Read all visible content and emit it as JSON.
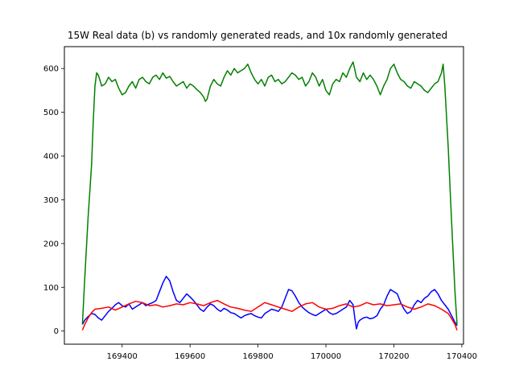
{
  "chart_data": {
    "type": "line",
    "title": "15W Real data (b) vs randomly generated reads, and 10x randomly generated",
    "xlabel": "",
    "ylabel": "",
    "xlim": [
      169230,
      170405
    ],
    "ylim": [
      -30,
      650
    ],
    "xticks": [
      169400,
      169600,
      169800,
      170000,
      170200,
      170400
    ],
    "xtick_labels": [
      "169400",
      "169600",
      "169800",
      "170000",
      "170200",
      "170400"
    ],
    "yticks": [
      0,
      100,
      200,
      300,
      400,
      500,
      600
    ],
    "ytick_labels": [
      "0",
      "100",
      "200",
      "300",
      "400",
      "500",
      "600"
    ],
    "grid": false,
    "series": [
      {
        "color": "#0000ff",
        "x": [
          169283,
          169290,
          169300,
          169310,
          169320,
          169330,
          169340,
          169350,
          169360,
          169370,
          169380,
          169390,
          169400,
          169410,
          169420,
          169430,
          169440,
          169450,
          169460,
          169470,
          169480,
          169490,
          169500,
          169510,
          169520,
          169530,
          169540,
          169550,
          169560,
          169570,
          169580,
          169590,
          169600,
          169610,
          169620,
          169630,
          169640,
          169650,
          169660,
          169670,
          169680,
          169690,
          169700,
          169710,
          169720,
          169730,
          169740,
          169750,
          169760,
          169770,
          169780,
          169790,
          169800,
          169810,
          169820,
          169830,
          169840,
          169850,
          169860,
          169870,
          169880,
          169890,
          169900,
          169910,
          169920,
          169930,
          169940,
          169950,
          169960,
          169970,
          169980,
          169990,
          170000,
          170010,
          170020,
          170030,
          170040,
          170050,
          170060,
          170070,
          170080,
          170085,
          170090,
          170095,
          170100,
          170110,
          170120,
          170130,
          170140,
          170150,
          170160,
          170170,
          170180,
          170190,
          170200,
          170210,
          170220,
          170230,
          170240,
          170250,
          170260,
          170270,
          170280,
          170290,
          170300,
          170310,
          170320,
          170330,
          170340,
          170350,
          170360,
          170370,
          170380,
          170386
        ],
        "y": [
          15,
          25,
          33,
          40,
          38,
          30,
          25,
          35,
          45,
          52,
          60,
          65,
          58,
          55,
          62,
          50,
          55,
          60,
          65,
          58,
          62,
          65,
          70,
          90,
          110,
          125,
          115,
          90,
          70,
          65,
          75,
          85,
          78,
          70,
          60,
          50,
          45,
          55,
          62,
          58,
          50,
          45,
          52,
          48,
          42,
          40,
          35,
          30,
          35,
          38,
          40,
          35,
          32,
          30,
          40,
          45,
          50,
          48,
          45,
          55,
          75,
          95,
          92,
          80,
          65,
          55,
          48,
          42,
          38,
          35,
          40,
          45,
          50,
          42,
          38,
          40,
          45,
          50,
          55,
          70,
          60,
          30,
          5,
          20,
          25,
          30,
          32,
          28,
          30,
          35,
          50,
          60,
          80,
          95,
          90,
          85,
          65,
          50,
          40,
          45,
          60,
          70,
          65,
          75,
          80,
          90,
          95,
          85,
          70,
          60,
          50,
          35,
          20,
          12
        ]
      },
      {
        "color": "#ff0000",
        "x": [
          169283,
          169290,
          169300,
          169310,
          169320,
          169340,
          169360,
          169380,
          169400,
          169420,
          169440,
          169460,
          169480,
          169500,
          169520,
          169540,
          169560,
          169580,
          169600,
          169620,
          169640,
          169660,
          169680,
          169700,
          169720,
          169740,
          169760,
          169780,
          169800,
          169820,
          169840,
          169860,
          169880,
          169900,
          169920,
          169940,
          169960,
          169980,
          170000,
          170020,
          170040,
          170060,
          170080,
          170100,
          170120,
          170140,
          170160,
          170180,
          170200,
          170220,
          170240,
          170260,
          170280,
          170300,
          170320,
          170340,
          170360,
          170370,
          170380,
          170386
        ],
        "y": [
          2,
          15,
          30,
          42,
          50,
          52,
          55,
          48,
          55,
          62,
          68,
          65,
          58,
          60,
          55,
          58,
          62,
          60,
          65,
          62,
          58,
          65,
          70,
          62,
          55,
          52,
          48,
          45,
          55,
          65,
          60,
          55,
          50,
          45,
          55,
          62,
          65,
          55,
          50,
          52,
          58,
          62,
          55,
          58,
          65,
          60,
          62,
          58,
          60,
          62,
          55,
          50,
          55,
          62,
          58,
          50,
          40,
          28,
          15,
          2
        ]
      },
      {
        "color": "#008000",
        "x": [
          169283,
          169290,
          169300,
          169310,
          169315,
          169320,
          169325,
          169330,
          169340,
          169350,
          169360,
          169370,
          169380,
          169390,
          169400,
          169410,
          169420,
          169430,
          169440,
          169450,
          169460,
          169470,
          169480,
          169490,
          169500,
          169510,
          169520,
          169530,
          169540,
          169550,
          169560,
          169570,
          169580,
          169590,
          169600,
          169610,
          169620,
          169630,
          169640,
          169645,
          169650,
          169660,
          169670,
          169680,
          169690,
          169700,
          169710,
          169720,
          169730,
          169740,
          169750,
          169760,
          169770,
          169780,
          169790,
          169800,
          169810,
          169820,
          169830,
          169840,
          169850,
          169860,
          169870,
          169880,
          169890,
          169900,
          169910,
          169920,
          169930,
          169940,
          169950,
          169960,
          169970,
          169980,
          169990,
          170000,
          170010,
          170020,
          170030,
          170040,
          170050,
          170060,
          170070,
          170080,
          170090,
          170100,
          170110,
          170120,
          170130,
          170140,
          170150,
          170160,
          170170,
          170180,
          170190,
          170200,
          170210,
          170220,
          170230,
          170240,
          170250,
          170260,
          170270,
          170280,
          170290,
          170300,
          170310,
          170320,
          170330,
          170340,
          170345,
          170350,
          170360,
          170370,
          170380,
          170386
        ],
        "y": [
          15,
          120,
          260,
          380,
          480,
          560,
          590,
          585,
          560,
          565,
          580,
          570,
          575,
          555,
          540,
          545,
          560,
          570,
          555,
          575,
          580,
          570,
          565,
          580,
          585,
          575,
          590,
          578,
          582,
          570,
          560,
          565,
          570,
          555,
          565,
          560,
          552,
          545,
          535,
          525,
          530,
          560,
          575,
          565,
          560,
          580,
          595,
          585,
          600,
          590,
          595,
          600,
          610,
          590,
          575,
          565,
          575,
          560,
          580,
          585,
          570,
          575,
          565,
          570,
          580,
          590,
          585,
          575,
          580,
          560,
          570,
          590,
          580,
          560,
          575,
          550,
          540,
          565,
          575,
          570,
          590,
          580,
          600,
          615,
          580,
          570,
          590,
          575,
          585,
          575,
          560,
          540,
          560,
          575,
          600,
          610,
          590,
          575,
          570,
          560,
          555,
          570,
          565,
          560,
          550,
          545,
          555,
          565,
          570,
          590,
          610,
          560,
          420,
          250,
          90,
          15
        ]
      }
    ]
  }
}
